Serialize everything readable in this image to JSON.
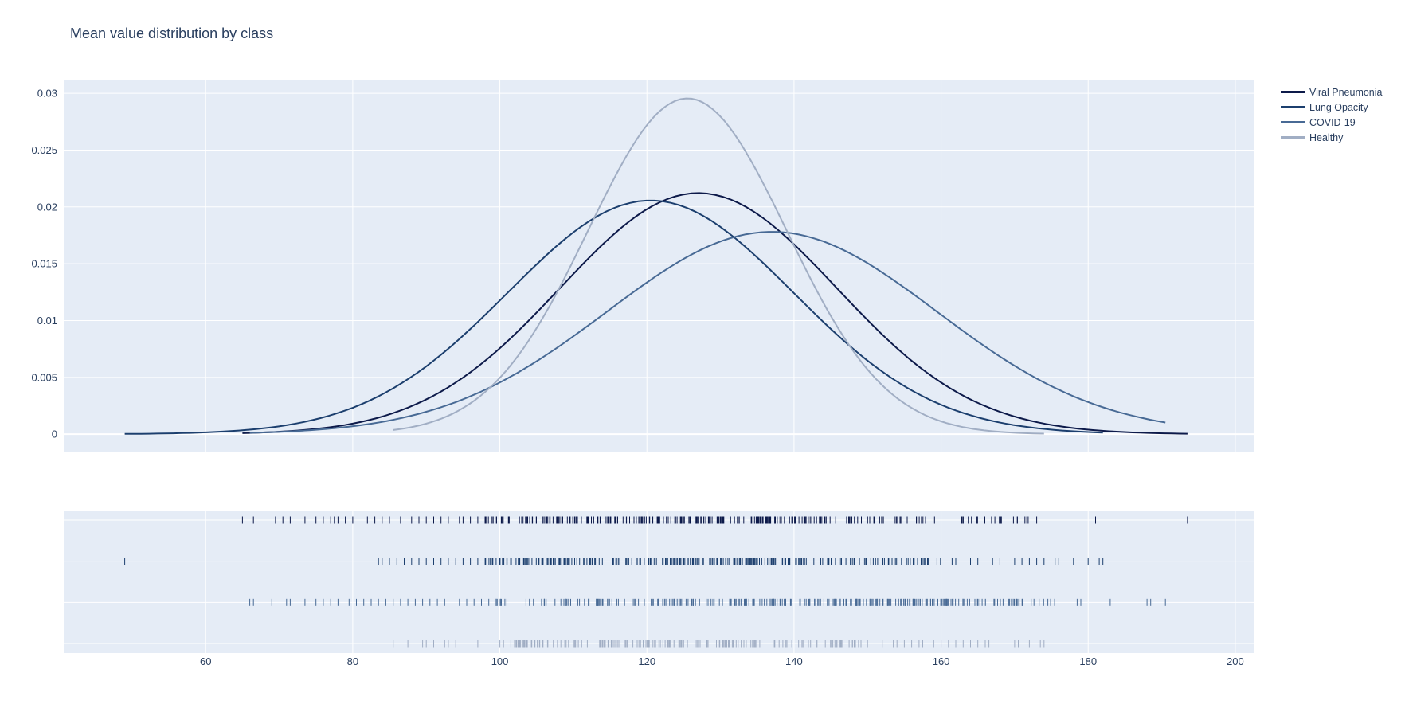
{
  "chart_data": {
    "type": "line",
    "title": "Mean value distribution by class",
    "xlabel": "",
    "ylabel": "",
    "legend_position": "top-right",
    "grid": true,
    "plot_bgcolor": "#e5ecf6",
    "grid_color": "#ffffff",
    "text_color": "#2a3f5f",
    "x_ticks": [
      "60",
      "80",
      "100",
      "120",
      "140",
      "160",
      "180",
      "200"
    ],
    "y_ticks": [
      "0",
      "0.005",
      "0.01",
      "0.015",
      "0.02",
      "0.025",
      "0.03"
    ],
    "xlim": [
      40.7,
      202.5
    ],
    "ylim": [
      -0.0016,
      0.0312
    ],
    "series": [
      {
        "name": "Viral Pneumonia",
        "color": "#0d1a4a",
        "mean": 127,
        "sd": 18.8,
        "x_range": [
          65,
          193.5
        ],
        "rug_points": [
          65,
          66.5,
          69.5,
          70.5,
          71.5,
          73.5,
          75,
          76,
          77,
          77.5,
          78,
          79,
          80,
          82,
          83,
          84,
          85,
          86.5,
          88,
          89,
          90,
          91,
          92,
          93,
          94.5,
          95,
          96,
          97,
          98,
          173,
          181,
          193.5
        ],
        "rug_dense": [
          [
            98,
            140,
            1.0
          ],
          [
            140,
            158,
            0.6
          ],
          [
            158,
            172,
            0.3
          ]
        ]
      },
      {
        "name": "Lung Opacity",
        "color": "#1c3f6e",
        "mean": 120.5,
        "sd": 19.4,
        "x_range": [
          49,
          182
        ],
        "rug_points": [
          49,
          83.5,
          84,
          85,
          86,
          87,
          88,
          89,
          90,
          91,
          92,
          93,
          94,
          95,
          96,
          97,
          98,
          99,
          161.5,
          162,
          164,
          165,
          167,
          168,
          170,
          171,
          172,
          173,
          174,
          175.5,
          176,
          177,
          178,
          180,
          181.5,
          182
        ],
        "rug_dense": [
          [
            98,
            143,
            1.0
          ],
          [
            143,
            160,
            0.6
          ]
        ]
      },
      {
        "name": "COVID-19",
        "color": "#486a95",
        "mean": 137,
        "sd": 22.4,
        "x_range": [
          66,
          190.5
        ],
        "rug_points": [
          66,
          66.5,
          69,
          71,
          71.5,
          73.5,
          75,
          76,
          77,
          78,
          79.5,
          80.5,
          81.5,
          82.5,
          83.5,
          84.5,
          85.5,
          86.5,
          87.5,
          88.5,
          89.5,
          90.5,
          91.5,
          92.5,
          93.5,
          94.5,
          95.5,
          96.5,
          97.5,
          98.5,
          99.5,
          177,
          178.5,
          179,
          183,
          188,
          188.5,
          190.5
        ],
        "rug_dense": [
          [
            99,
            122,
            0.5
          ],
          [
            122,
            137,
            0.75
          ],
          [
            137,
            158,
            1.0
          ],
          [
            158,
            176,
            0.7
          ]
        ]
      },
      {
        "name": "Healthy",
        "color": "#a1aec4",
        "mean": 125.5,
        "sd": 13.5,
        "x_range": [
          85.5,
          174
        ],
        "rug_points": [
          85.5,
          87.5,
          89.5,
          90,
          91,
          92.5,
          93,
          94,
          97,
          100,
          100.5,
          101.5,
          102,
          150,
          151,
          152,
          153.5,
          154,
          155,
          156,
          157,
          157.5,
          159,
          160,
          161,
          162,
          163,
          164,
          165,
          166,
          166.5,
          170,
          170.5,
          172,
          173.5,
          174
        ],
        "rug_dense": [
          [
            102,
            136,
            0.8
          ],
          [
            136,
            150,
            0.5
          ]
        ]
      }
    ]
  }
}
